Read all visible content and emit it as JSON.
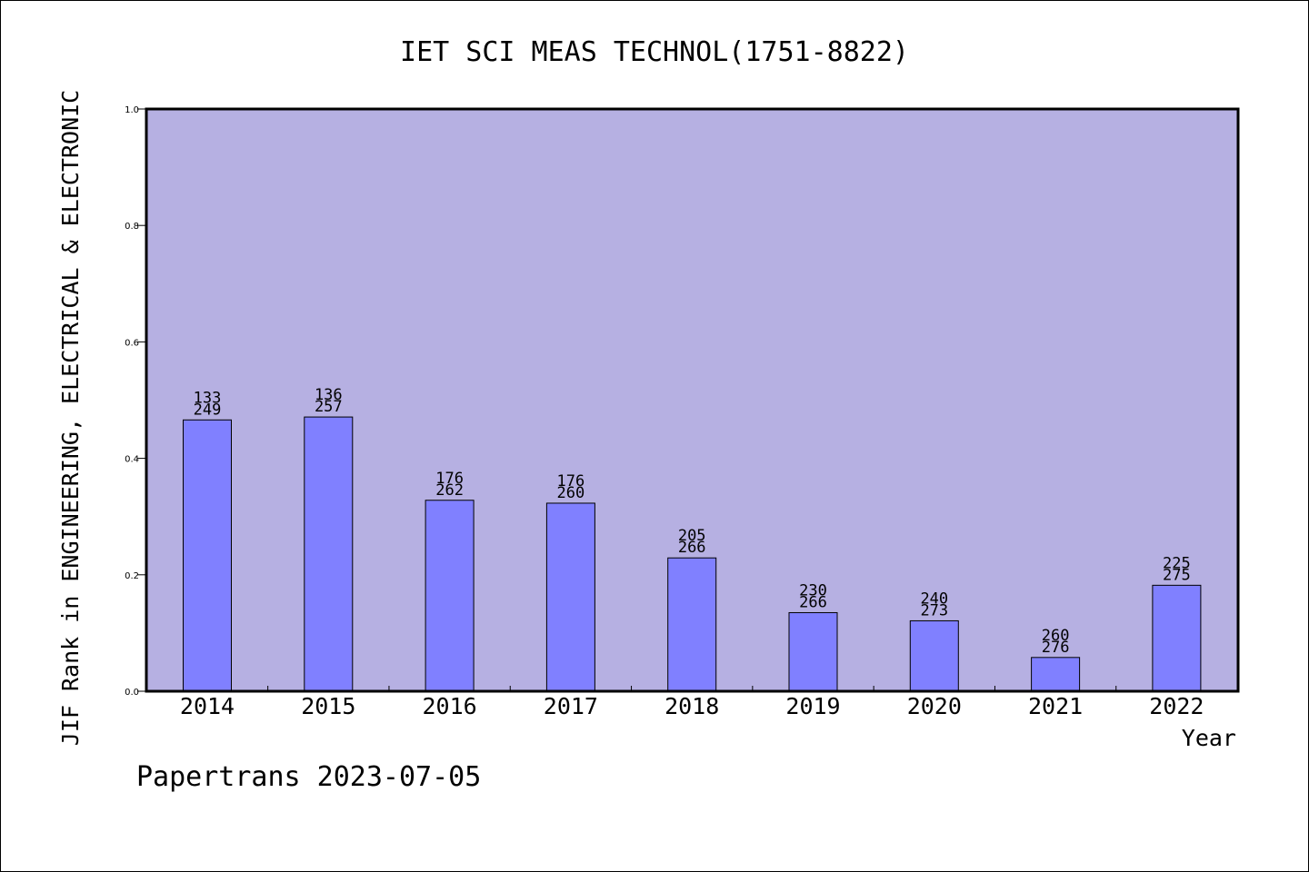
{
  "chart_data": {
    "type": "bar",
    "title": "IET SCI MEAS TECHNOL(1751-8822)",
    "ylabel": "JIF Rank in ENGINEERING, ELECTRICAL & ELECTRONIC",
    "xlabel": "Year",
    "footer": "Papertrans 2023-07-05",
    "ylim": [
      0,
      1.0
    ],
    "yticks": [
      "0.0",
      "0.2",
      "0.4",
      "0.6",
      "0.8",
      "1.0"
    ],
    "categories": [
      "2014",
      "2015",
      "2016",
      "2017",
      "2018",
      "2019",
      "2020",
      "2021",
      "2022"
    ],
    "values": [
      0.466,
      0.471,
      0.328,
      0.323,
      0.229,
      0.135,
      0.121,
      0.058,
      0.182
    ],
    "rank": [
      "133",
      "136",
      "176",
      "176",
      "205",
      "230",
      "240",
      "260",
      "225"
    ],
    "total": [
      "249",
      "257",
      "262",
      "260",
      "266",
      "266",
      "273",
      "276",
      "275"
    ],
    "grid": false,
    "legend": "none",
    "colors": {
      "plot_background": "#b6b0e2",
      "bar_fill": "#8080ff",
      "bar_stroke": "#000000"
    }
  }
}
